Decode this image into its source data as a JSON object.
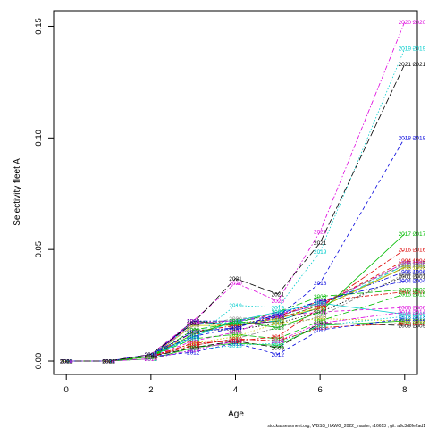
{
  "chart_data": {
    "type": "line",
    "title": "",
    "xlabel": "Age",
    "ylabel": "Selectivity fleet A",
    "xlim": [
      -0.3,
      8.3
    ],
    "ylim": [
      -0.006,
      0.157
    ],
    "xticks": [
      0,
      2,
      4,
      6,
      8
    ],
    "yticks": [
      0.0,
      0.05,
      0.1,
      0.15
    ],
    "ytick_labels": [
      "0.00",
      "0.05",
      "0.10",
      "0.15"
    ],
    "grid": false,
    "legend": "none",
    "ages": [
      0,
      1,
      2,
      3,
      4,
      5,
      6,
      8
    ],
    "series": [
      {
        "name": "1993",
        "color": "#000000",
        "values": [
          0,
          0,
          0.002,
          0.018,
          0.016,
          0.018,
          0.024,
          0.042
        ]
      },
      {
        "name": "1994",
        "color": "#dd0000",
        "values": [
          0,
          0,
          0.002,
          0.017,
          0.016,
          0.019,
          0.025,
          0.045
        ]
      },
      {
        "name": "1995",
        "color": "#00bb00",
        "values": [
          0,
          0,
          0.002,
          0.018,
          0.017,
          0.019,
          0.025,
          0.044
        ]
      },
      {
        "name": "1996",
        "color": "#0000dd",
        "values": [
          0,
          0,
          0.002,
          0.018,
          0.018,
          0.02,
          0.026,
          0.04
        ]
      },
      {
        "name": "1997",
        "color": "#00cccc",
        "values": [
          0,
          0,
          0.002,
          0.017,
          0.017,
          0.018,
          0.024,
          0.043
        ]
      },
      {
        "name": "1998",
        "color": "#dd00dd",
        "values": [
          0,
          0,
          0.002,
          0.017,
          0.018,
          0.021,
          0.025,
          0.044
        ]
      },
      {
        "name": "1999",
        "color": "#cccc00",
        "values": [
          0,
          0,
          0.002,
          0.016,
          0.016,
          0.019,
          0.024,
          0.042
        ]
      },
      {
        "name": "2000",
        "color": "#888888",
        "values": [
          0,
          0,
          0.002,
          0.016,
          0.019,
          0.02,
          0.026,
          0.043
        ]
      },
      {
        "name": "2001",
        "color": "#000000",
        "values": [
          0,
          0,
          0.002,
          0.014,
          0.014,
          0.017,
          0.022,
          0.038
        ]
      },
      {
        "name": "2002",
        "color": "#dd0000",
        "values": [
          0,
          0,
          0.002,
          0.013,
          0.016,
          0.02,
          0.027,
          0.031
        ]
      },
      {
        "name": "2003",
        "color": "#00bb00",
        "values": [
          0,
          0,
          0.002,
          0.014,
          0.017,
          0.022,
          0.029,
          0.032
        ]
      },
      {
        "name": "2004",
        "color": "#0000dd",
        "values": [
          0,
          0,
          0.003,
          0.013,
          0.015,
          0.021,
          0.027,
          0.036
        ]
      },
      {
        "name": "2005",
        "color": "#00cccc",
        "values": [
          0,
          0,
          0.002,
          0.011,
          0.018,
          0.022,
          0.026,
          0.021
        ]
      },
      {
        "name": "2006",
        "color": "#dd00dd",
        "values": [
          0,
          0,
          0.002,
          0.009,
          0.013,
          0.02,
          0.022,
          0.024
        ]
      },
      {
        "name": "2007",
        "color": "#cccc00",
        "values": [
          0,
          0,
          0.002,
          0.008,
          0.011,
          0.017,
          0.019,
          0.018
        ]
      },
      {
        "name": "2008",
        "color": "#888888",
        "values": [
          0,
          0,
          0.002,
          0.007,
          0.01,
          0.015,
          0.02,
          0.039
        ]
      },
      {
        "name": "2009",
        "color": "#000000",
        "values": [
          0,
          0,
          0.002,
          0.006,
          0.009,
          0.006,
          0.017,
          0.016
        ]
      },
      {
        "name": "2010",
        "color": "#dd0000",
        "values": [
          0,
          0,
          0.002,
          0.007,
          0.01,
          0.009,
          0.015,
          0.017
        ]
      },
      {
        "name": "2011",
        "color": "#00bb00",
        "values": [
          0,
          0,
          0.001,
          0.006,
          0.008,
          0.007,
          0.016,
          0.018
        ]
      },
      {
        "name": "2012",
        "color": "#0000dd",
        "values": [
          0,
          0,
          0.002,
          0.004,
          0.008,
          0.003,
          0.014,
          0.019
        ]
      },
      {
        "name": "2013",
        "color": "#00cccc",
        "values": [
          0,
          0,
          0.001,
          0.005,
          0.007,
          0.008,
          0.016,
          0.02
        ]
      },
      {
        "name": "2014",
        "color": "#dd00dd",
        "values": [
          0,
          0,
          0.001,
          0.005,
          0.009,
          0.009,
          0.017,
          0.022
        ]
      },
      {
        "name": "2015",
        "color": "#00bb00",
        "values": [
          0,
          0,
          0.002,
          0.01,
          0.012,
          0.01,
          0.018,
          0.03
        ]
      },
      {
        "name": "2016",
        "color": "#dd0000",
        "values": [
          0,
          0,
          0.002,
          0.008,
          0.009,
          0.011,
          0.024,
          0.05
        ]
      },
      {
        "name": "2017",
        "color": "#00bb00",
        "values": [
          0,
          0,
          0.002,
          0.012,
          0.018,
          0.015,
          0.022,
          0.057
        ]
      },
      {
        "name": "2018",
        "color": "#0000dd",
        "values": [
          0,
          0,
          0.003,
          0.011,
          0.015,
          0.02,
          0.035,
          0.1
        ]
      },
      {
        "name": "2019",
        "color": "#00cccc",
        "values": [
          0,
          0,
          0.003,
          0.01,
          0.025,
          0.024,
          0.049,
          0.14
        ]
      },
      {
        "name": "2020",
        "color": "#dd00dd",
        "values": [
          0,
          0,
          0.003,
          0.018,
          0.035,
          0.027,
          0.058,
          0.152
        ]
      },
      {
        "name": "2021",
        "color": "#000000",
        "values": [
          0,
          0,
          0.003,
          0.017,
          0.037,
          0.03,
          0.053,
          0.133
        ]
      }
    ]
  },
  "footer": "stockassessment.org, WBSS_HAWG_2022_master, r16613 , git: a9c3d8fe2ad1"
}
